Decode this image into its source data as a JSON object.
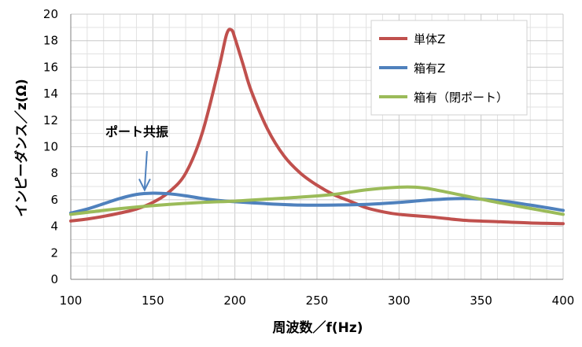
{
  "chart_data": {
    "type": "line",
    "xlabel": "周波数／f(Hz)",
    "ylabel": "インピーダンス／z(Ω)",
    "xlim": [
      100,
      400
    ],
    "ylim": [
      0,
      20
    ],
    "xticks": [
      100,
      150,
      200,
      250,
      300,
      350,
      400
    ],
    "yticks": [
      0,
      2,
      4,
      6,
      8,
      10,
      12,
      14,
      16,
      18,
      20
    ],
    "grid": true,
    "legend_position": "top-right",
    "series": [
      {
        "name": "単体Z",
        "color": "#c0504d",
        "points": [
          [
            100,
            4.4
          ],
          [
            110,
            4.55
          ],
          [
            120,
            4.75
          ],
          [
            130,
            5.0
          ],
          [
            140,
            5.3
          ],
          [
            150,
            5.8
          ],
          [
            160,
            6.6
          ],
          [
            170,
            8.0
          ],
          [
            180,
            11.0
          ],
          [
            190,
            15.8
          ],
          [
            195,
            18.5
          ],
          [
            198,
            18.8
          ],
          [
            200,
            18.2
          ],
          [
            205,
            16.2
          ],
          [
            210,
            14.2
          ],
          [
            220,
            11.3
          ],
          [
            230,
            9.3
          ],
          [
            240,
            8.0
          ],
          [
            250,
            7.1
          ],
          [
            260,
            6.4
          ],
          [
            270,
            5.9
          ],
          [
            280,
            5.4
          ],
          [
            290,
            5.1
          ],
          [
            300,
            4.9
          ],
          [
            320,
            4.7
          ],
          [
            340,
            4.45
          ],
          [
            360,
            4.35
          ],
          [
            380,
            4.25
          ],
          [
            400,
            4.2
          ]
        ]
      },
      {
        "name": "箱有Z",
        "color": "#4f81bd",
        "points": [
          [
            100,
            5.0
          ],
          [
            110,
            5.3
          ],
          [
            120,
            5.7
          ],
          [
            130,
            6.1
          ],
          [
            140,
            6.4
          ],
          [
            150,
            6.5
          ],
          [
            160,
            6.45
          ],
          [
            170,
            6.3
          ],
          [
            180,
            6.1
          ],
          [
            190,
            5.95
          ],
          [
            200,
            5.85
          ],
          [
            220,
            5.7
          ],
          [
            240,
            5.6
          ],
          [
            260,
            5.6
          ],
          [
            280,
            5.65
          ],
          [
            300,
            5.8
          ],
          [
            320,
            6.0
          ],
          [
            340,
            6.1
          ],
          [
            360,
            5.95
          ],
          [
            380,
            5.6
          ],
          [
            400,
            5.2
          ]
        ]
      },
      {
        "name": "箱有（閉ポート）",
        "color": "#9bbb59",
        "points": [
          [
            100,
            4.9
          ],
          [
            120,
            5.2
          ],
          [
            140,
            5.45
          ],
          [
            160,
            5.65
          ],
          [
            180,
            5.8
          ],
          [
            200,
            5.9
          ],
          [
            220,
            6.05
          ],
          [
            240,
            6.2
          ],
          [
            260,
            6.4
          ],
          [
            280,
            6.75
          ],
          [
            300,
            6.95
          ],
          [
            310,
            6.95
          ],
          [
            320,
            6.8
          ],
          [
            340,
            6.3
          ],
          [
            360,
            5.8
          ],
          [
            380,
            5.35
          ],
          [
            400,
            4.9
          ]
        ]
      }
    ],
    "annotations": [
      {
        "text": "ポート共振",
        "target_x": 145,
        "target_y": 6.5
      }
    ]
  }
}
